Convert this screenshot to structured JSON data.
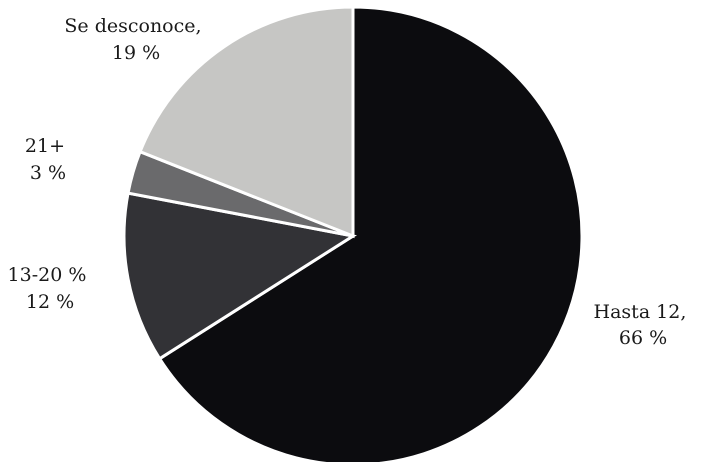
{
  "chart_data": {
    "type": "pie",
    "title": "",
    "slices": [
      {
        "label": "Hasta 12,",
        "value": 66,
        "value_label": "66 %",
        "color": "#0c0c0f"
      },
      {
        "label": "13-20 %",
        "value": 12,
        "value_label": "12 %",
        "color": "#323236"
      },
      {
        "label": "21+",
        "value": 3,
        "value_label": "3 %",
        "color": "#6a6a6c"
      },
      {
        "label": "Se desconoce,",
        "value": 19,
        "value_label": "19 %",
        "color": "#c6c6c4"
      }
    ],
    "start_angle": "12 o'clock",
    "direction": "clockwise",
    "legend": "none (labels beside slices)"
  }
}
